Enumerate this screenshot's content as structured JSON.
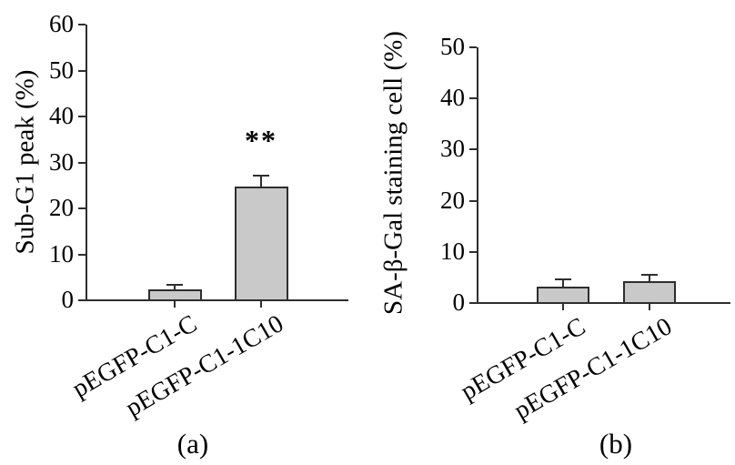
{
  "figure_title": "",
  "chart_data": [
    {
      "type": "bar",
      "panel": "(a)",
      "ylabel": "Sub-G1 peak (%)",
      "xlabel": "",
      "categories": [
        "pEGFP-C1-C",
        "pEGFP-C1-1C10"
      ],
      "values": [
        2.3,
        24.7
      ],
      "errors": [
        1.1,
        2.4
      ],
      "ylim": [
        0,
        60
      ],
      "yticks": [
        0,
        10,
        20,
        30,
        40,
        50,
        60
      ],
      "annotations": [
        {
          "category_index": 1,
          "text": "**"
        }
      ],
      "legend": "none",
      "grid": false,
      "bar_fill": "#c9c9c9",
      "bar_border": "#2e2e2e"
    },
    {
      "type": "bar",
      "panel": "(b)",
      "ylabel": "SA-β-Gal staining cell (%)",
      "xlabel": "",
      "categories": [
        "pEGFP-C1-C",
        "pEGFP-C1-1C10"
      ],
      "values": [
        3.2,
        4.2
      ],
      "errors": [
        1.4,
        1.3
      ],
      "ylim": [
        0,
        50
      ],
      "yticks": [
        0,
        10,
        20,
        30,
        40,
        50
      ],
      "annotations": [],
      "legend": "none",
      "grid": false,
      "bar_fill": "#c9c9c9",
      "bar_border": "#2e2e2e"
    }
  ]
}
